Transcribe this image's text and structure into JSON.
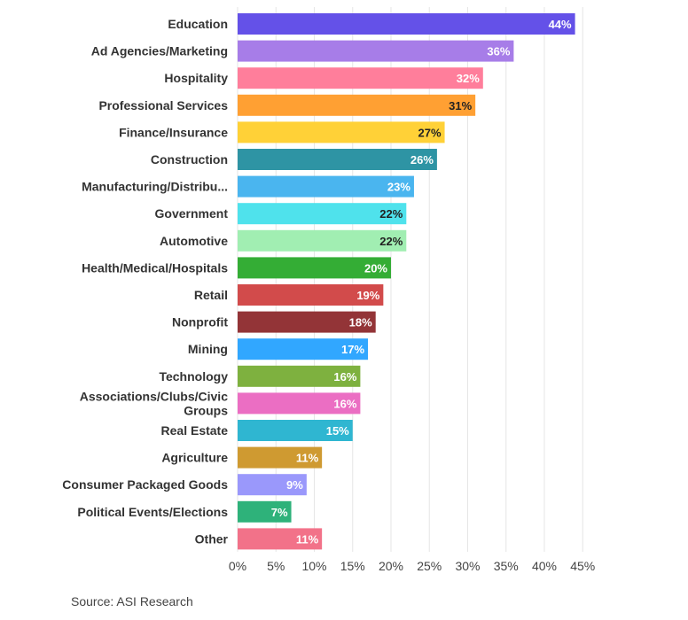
{
  "chart_data": {
    "type": "bar",
    "orientation": "horizontal",
    "title": "",
    "xlabel": "",
    "ylabel": "",
    "xlim": [
      0,
      45
    ],
    "x_ticks": [
      "0%",
      "5%",
      "10%",
      "15%",
      "20%",
      "25%",
      "30%",
      "35%",
      "40%",
      "45%"
    ],
    "grid": true,
    "legend": "none",
    "categories": [
      "Education",
      "Ad Agencies/Marketing",
      "Hospitality",
      "Professional Services",
      "Finance/Insurance",
      "Construction",
      "Manufacturing/Distribu...",
      "Government",
      "Automotive",
      "Health/Medical/Hospitals",
      "Retail",
      "Nonprofit",
      "Mining",
      "Technology",
      "Associations/Clubs/Civic Groups",
      "Real Estate",
      "Agriculture",
      "Consumer Packaged Goods",
      "Political Events/Elections",
      "Other"
    ],
    "values": [
      44,
      36,
      32,
      31,
      27,
      26,
      23,
      22,
      22,
      20,
      19,
      18,
      17,
      16,
      16,
      15,
      11,
      9,
      7,
      11
    ],
    "value_labels": [
      "44%",
      "36%",
      "32%",
      "31%",
      "27%",
      "26%",
      "23%",
      "22%",
      "22%",
      "20%",
      "19%",
      "18%",
      "17%",
      "16%",
      "16%",
      "15%",
      "11%",
      "9%",
      "7%",
      "11%"
    ],
    "colors": [
      "#6451e8",
      "#a77de8",
      "#ff7e9b",
      "#ffa033",
      "#ffd137",
      "#2e94a4",
      "#4ab5ef",
      "#4fe2ec",
      "#a1eeb2",
      "#34ad35",
      "#d24b4b",
      "#933437",
      "#31a7ff",
      "#7eb13f",
      "#eb6ec3",
      "#2fb6d1",
      "#cf9a31",
      "#9a98fb",
      "#2eb27a",
      "#f27289"
    ],
    "value_label_colors": [
      "#ffffff",
      "#ffffff",
      "#ffffff",
      "#222222",
      "#222222",
      "#ffffff",
      "#ffffff",
      "#222222",
      "#222222",
      "#ffffff",
      "#ffffff",
      "#ffffff",
      "#ffffff",
      "#ffffff",
      "#ffffff",
      "#ffffff",
      "#ffffff",
      "#ffffff",
      "#ffffff",
      "#ffffff"
    ]
  },
  "source": "Source: ASI Research"
}
